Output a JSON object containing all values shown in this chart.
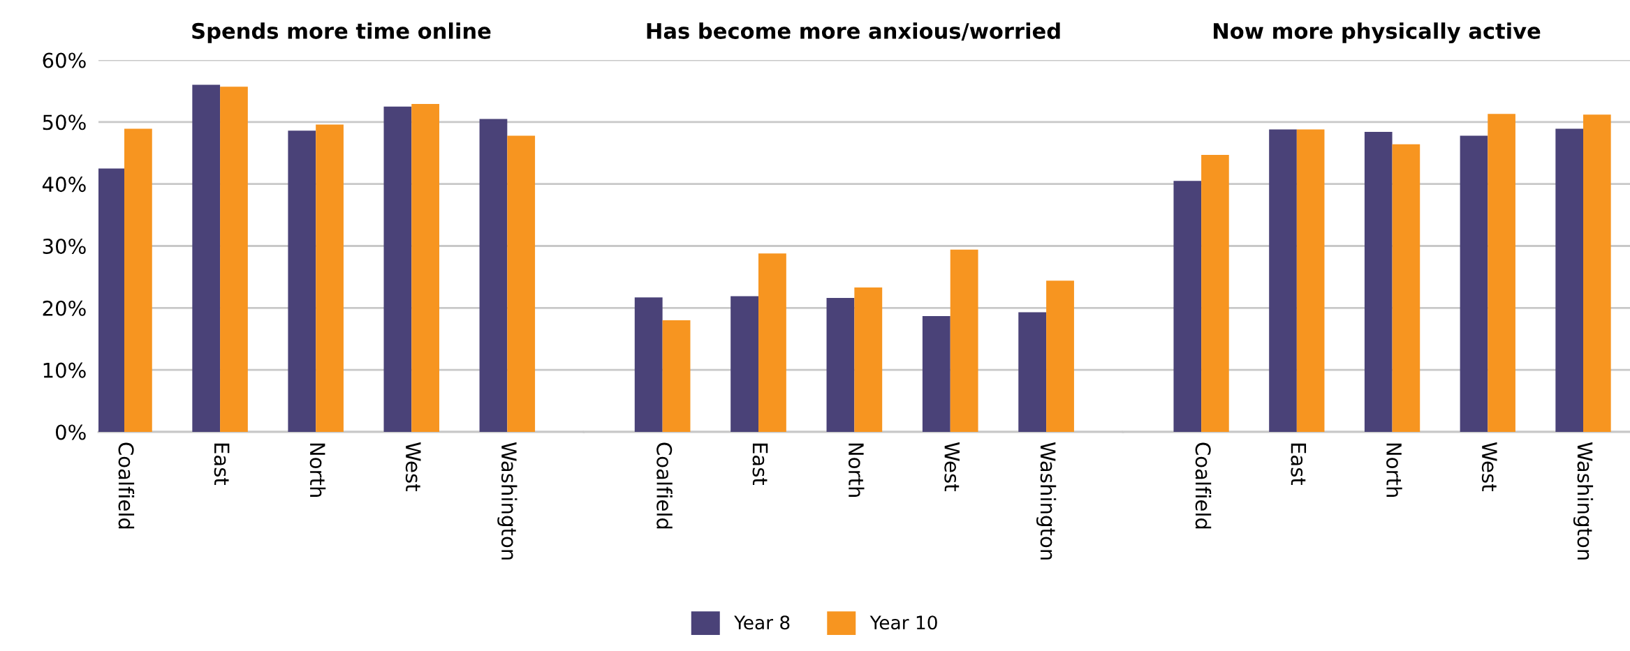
{
  "chart_data": [
    {
      "type": "bar",
      "title": "Spends more time online",
      "categories": [
        "Coalfield",
        "East",
        "North",
        "West",
        "Washington"
      ],
      "series": [
        {
          "name": "Year 8",
          "color": "#4a4278",
          "values": [
            42.5,
            56.0,
            48.6,
            52.5,
            50.5
          ]
        },
        {
          "name": "Year 10",
          "color": "#f79520",
          "values": [
            48.9,
            55.7,
            49.6,
            52.9,
            47.8
          ]
        }
      ],
      "ylim": [
        0,
        60
      ],
      "yticks": [
        {
          "value": 0,
          "label": "0%"
        },
        {
          "value": 10,
          "label": "10%"
        },
        {
          "value": 20,
          "label": "20%"
        },
        {
          "value": 30,
          "label": "30%"
        },
        {
          "value": 40,
          "label": "40%"
        },
        {
          "value": 50,
          "label": "50%"
        },
        {
          "value": 60,
          "label": "60%"
        }
      ],
      "grid": "y",
      "legend": "bottom"
    },
    {
      "type": "bar",
      "title": "Has become more anxious/worried",
      "categories": [
        "Coalfield",
        "East",
        "North",
        "West",
        "Washington"
      ],
      "series": [
        {
          "color": "#4a4278",
          "values": [
            21.7,
            21.9,
            21.6,
            18.7,
            19.3
          ]
        },
        {
          "color": "#f79520",
          "values": [
            18.0,
            28.8,
            23.3,
            29.4,
            24.4
          ]
        }
      ],
      "ylim": [
        0,
        60
      ],
      "yticks": [
        0,
        10,
        20,
        30,
        40,
        50,
        60
      ],
      "grid": "y",
      "tick_labels": "x"
    },
    {
      "type": "bar",
      "title": "Now more physically active",
      "categories": [
        "Coalfield",
        "East",
        "North",
        "West",
        "Washington"
      ],
      "series": [
        {
          "color": "#4a4278",
          "values": [
            40.5,
            48.8,
            48.4,
            47.8,
            48.9
          ]
        },
        {
          "color": "#f79520",
          "values": [
            44.7,
            48.8,
            46.4,
            51.3,
            51.2
          ]
        }
      ],
      "ylim": [
        0,
        60
      ],
      "yticks": [
        0,
        10,
        20,
        30,
        40,
        50,
        60
      ],
      "grid": "y",
      "tick_labels": "x"
    }
  ]
}
